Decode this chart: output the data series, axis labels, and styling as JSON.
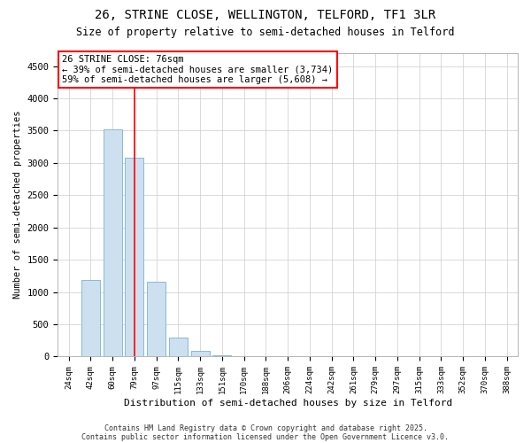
{
  "title_line1": "26, STRINE CLOSE, WELLINGTON, TELFORD, TF1 3LR",
  "title_line2": "Size of property relative to semi-detached houses in Telford",
  "xlabel": "Distribution of semi-detached houses by size in Telford",
  "ylabel": "Number of semi-detached properties",
  "categories": [
    "24sqm",
    "42sqm",
    "60sqm",
    "79sqm",
    "97sqm",
    "115sqm",
    "133sqm",
    "151sqm",
    "170sqm",
    "188sqm",
    "206sqm",
    "224sqm",
    "242sqm",
    "261sqm",
    "279sqm",
    "297sqm",
    "315sqm",
    "333sqm",
    "352sqm",
    "370sqm",
    "388sqm"
  ],
  "values": [
    0,
    1180,
    3520,
    3080,
    1160,
    290,
    90,
    25,
    10,
    5,
    3,
    2,
    1,
    1,
    0,
    0,
    0,
    0,
    0,
    0,
    0
  ],
  "bar_color": "#cce0f0",
  "bar_edge_color": "#7ab0d4",
  "vline_x": 3,
  "vline_color": "red",
  "annotation_line1": "26 STRINE CLOSE: 76sqm",
  "annotation_line2": "← 39% of semi-detached houses are smaller (3,734)",
  "annotation_line3": "59% of semi-detached houses are larger (5,608) →",
  "ylim": [
    0,
    4700
  ],
  "yticks": [
    0,
    500,
    1000,
    1500,
    2000,
    2500,
    3000,
    3500,
    4000,
    4500
  ],
  "footer_line1": "Contains HM Land Registry data © Crown copyright and database right 2025.",
  "footer_line2": "Contains public sector information licensed under the Open Government Licence v3.0.",
  "background_color": "#ffffff",
  "grid_color": "#cccccc"
}
